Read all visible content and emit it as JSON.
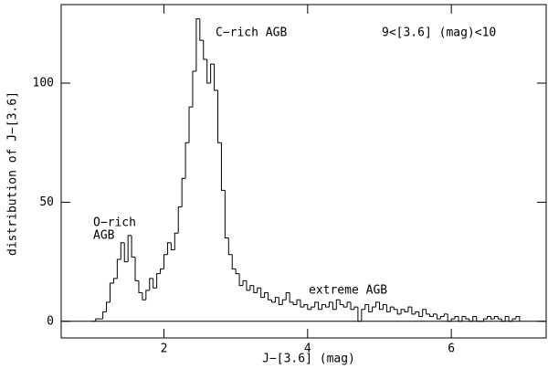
{
  "chart_data": {
    "type": "histogram",
    "xlabel": "J−[3.6] (mag)",
    "ylabel": "distribution of J−[3.6]",
    "annotations": [
      "C−rich AGB",
      "9<[3.6] (mag)<10",
      "O−rich",
      "AGB",
      "extreme AGB"
    ],
    "bins": [
      1,
      1.05,
      1.1,
      1.15,
      1.2,
      1.25,
      1.3,
      1.35,
      1.4,
      1.45,
      1.5,
      1.55,
      1.6,
      1.65,
      1.7,
      1.75,
      1.8,
      1.85,
      1.9,
      1.95,
      2,
      2.05,
      2.1,
      2.15,
      2.2,
      2.25,
      2.3,
      2.35,
      2.4,
      2.45,
      2.5,
      2.55,
      2.6,
      2.65,
      2.7,
      2.75,
      2.8,
      2.85,
      2.9,
      2.95,
      3,
      3.05,
      3.1,
      3.15,
      3.2,
      3.25,
      3.3,
      3.35,
      3.4,
      3.45,
      3.5,
      3.55,
      3.6,
      3.65,
      3.7,
      3.75,
      3.8,
      3.85,
      3.9,
      3.95,
      4,
      4.05,
      4.1,
      4.15,
      4.2,
      4.25,
      4.3,
      4.35,
      4.4,
      4.45,
      4.5,
      4.55,
      4.6,
      4.65,
      4.7,
      4.75,
      4.8,
      4.85,
      4.9,
      4.95,
      5,
      5.05,
      5.1,
      5.15,
      5.2,
      5.25,
      5.3,
      5.35,
      5.4,
      5.45,
      5.5,
      5.55,
      5.6,
      5.65,
      5.7,
      5.75,
      5.8,
      5.85,
      5.9,
      5.95,
      6,
      6.05,
      6.1,
      6.15,
      6.2,
      6.25,
      6.3,
      6.35,
      6.4,
      6.45,
      6.5,
      6.55,
      6.6,
      6.65,
      6.7,
      6.75,
      6.8,
      6.85,
      6.9,
      6.95
    ],
    "values": [
      0,
      1,
      1,
      4,
      8,
      16,
      18,
      26,
      33,
      25,
      36,
      27,
      17,
      12,
      9,
      13,
      18,
      14,
      20,
      22,
      28,
      33,
      30,
      37,
      48,
      60,
      75,
      90,
      105,
      127,
      118,
      110,
      100,
      108,
      97,
      75,
      55,
      35,
      28,
      22,
      20,
      15,
      17,
      13,
      15,
      12,
      14,
      10,
      12,
      9,
      8,
      10,
      7,
      9,
      12,
      8,
      7,
      9,
      6,
      7,
      5,
      6,
      8,
      5,
      7,
      6,
      8,
      5,
      9,
      7,
      6,
      8,
      5,
      6,
      0,
      5,
      7,
      4,
      6,
      8,
      5,
      7,
      4,
      6,
      5,
      3,
      5,
      4,
      6,
      3,
      4,
      2,
      5,
      3,
      2,
      3,
      1,
      2,
      3,
      0,
      1,
      2,
      0,
      2,
      1,
      0,
      2,
      0,
      0,
      1,
      2,
      1,
      2,
      1,
      0,
      2,
      0,
      1,
      2
    ],
    "color": "#000000",
    "xlim": [
      0.57,
      7.32
    ],
    "xticks": [
      2,
      4,
      6
    ],
    "ylim": [
      -7,
      133
    ],
    "yticks": [
      0,
      50,
      100
    ]
  }
}
